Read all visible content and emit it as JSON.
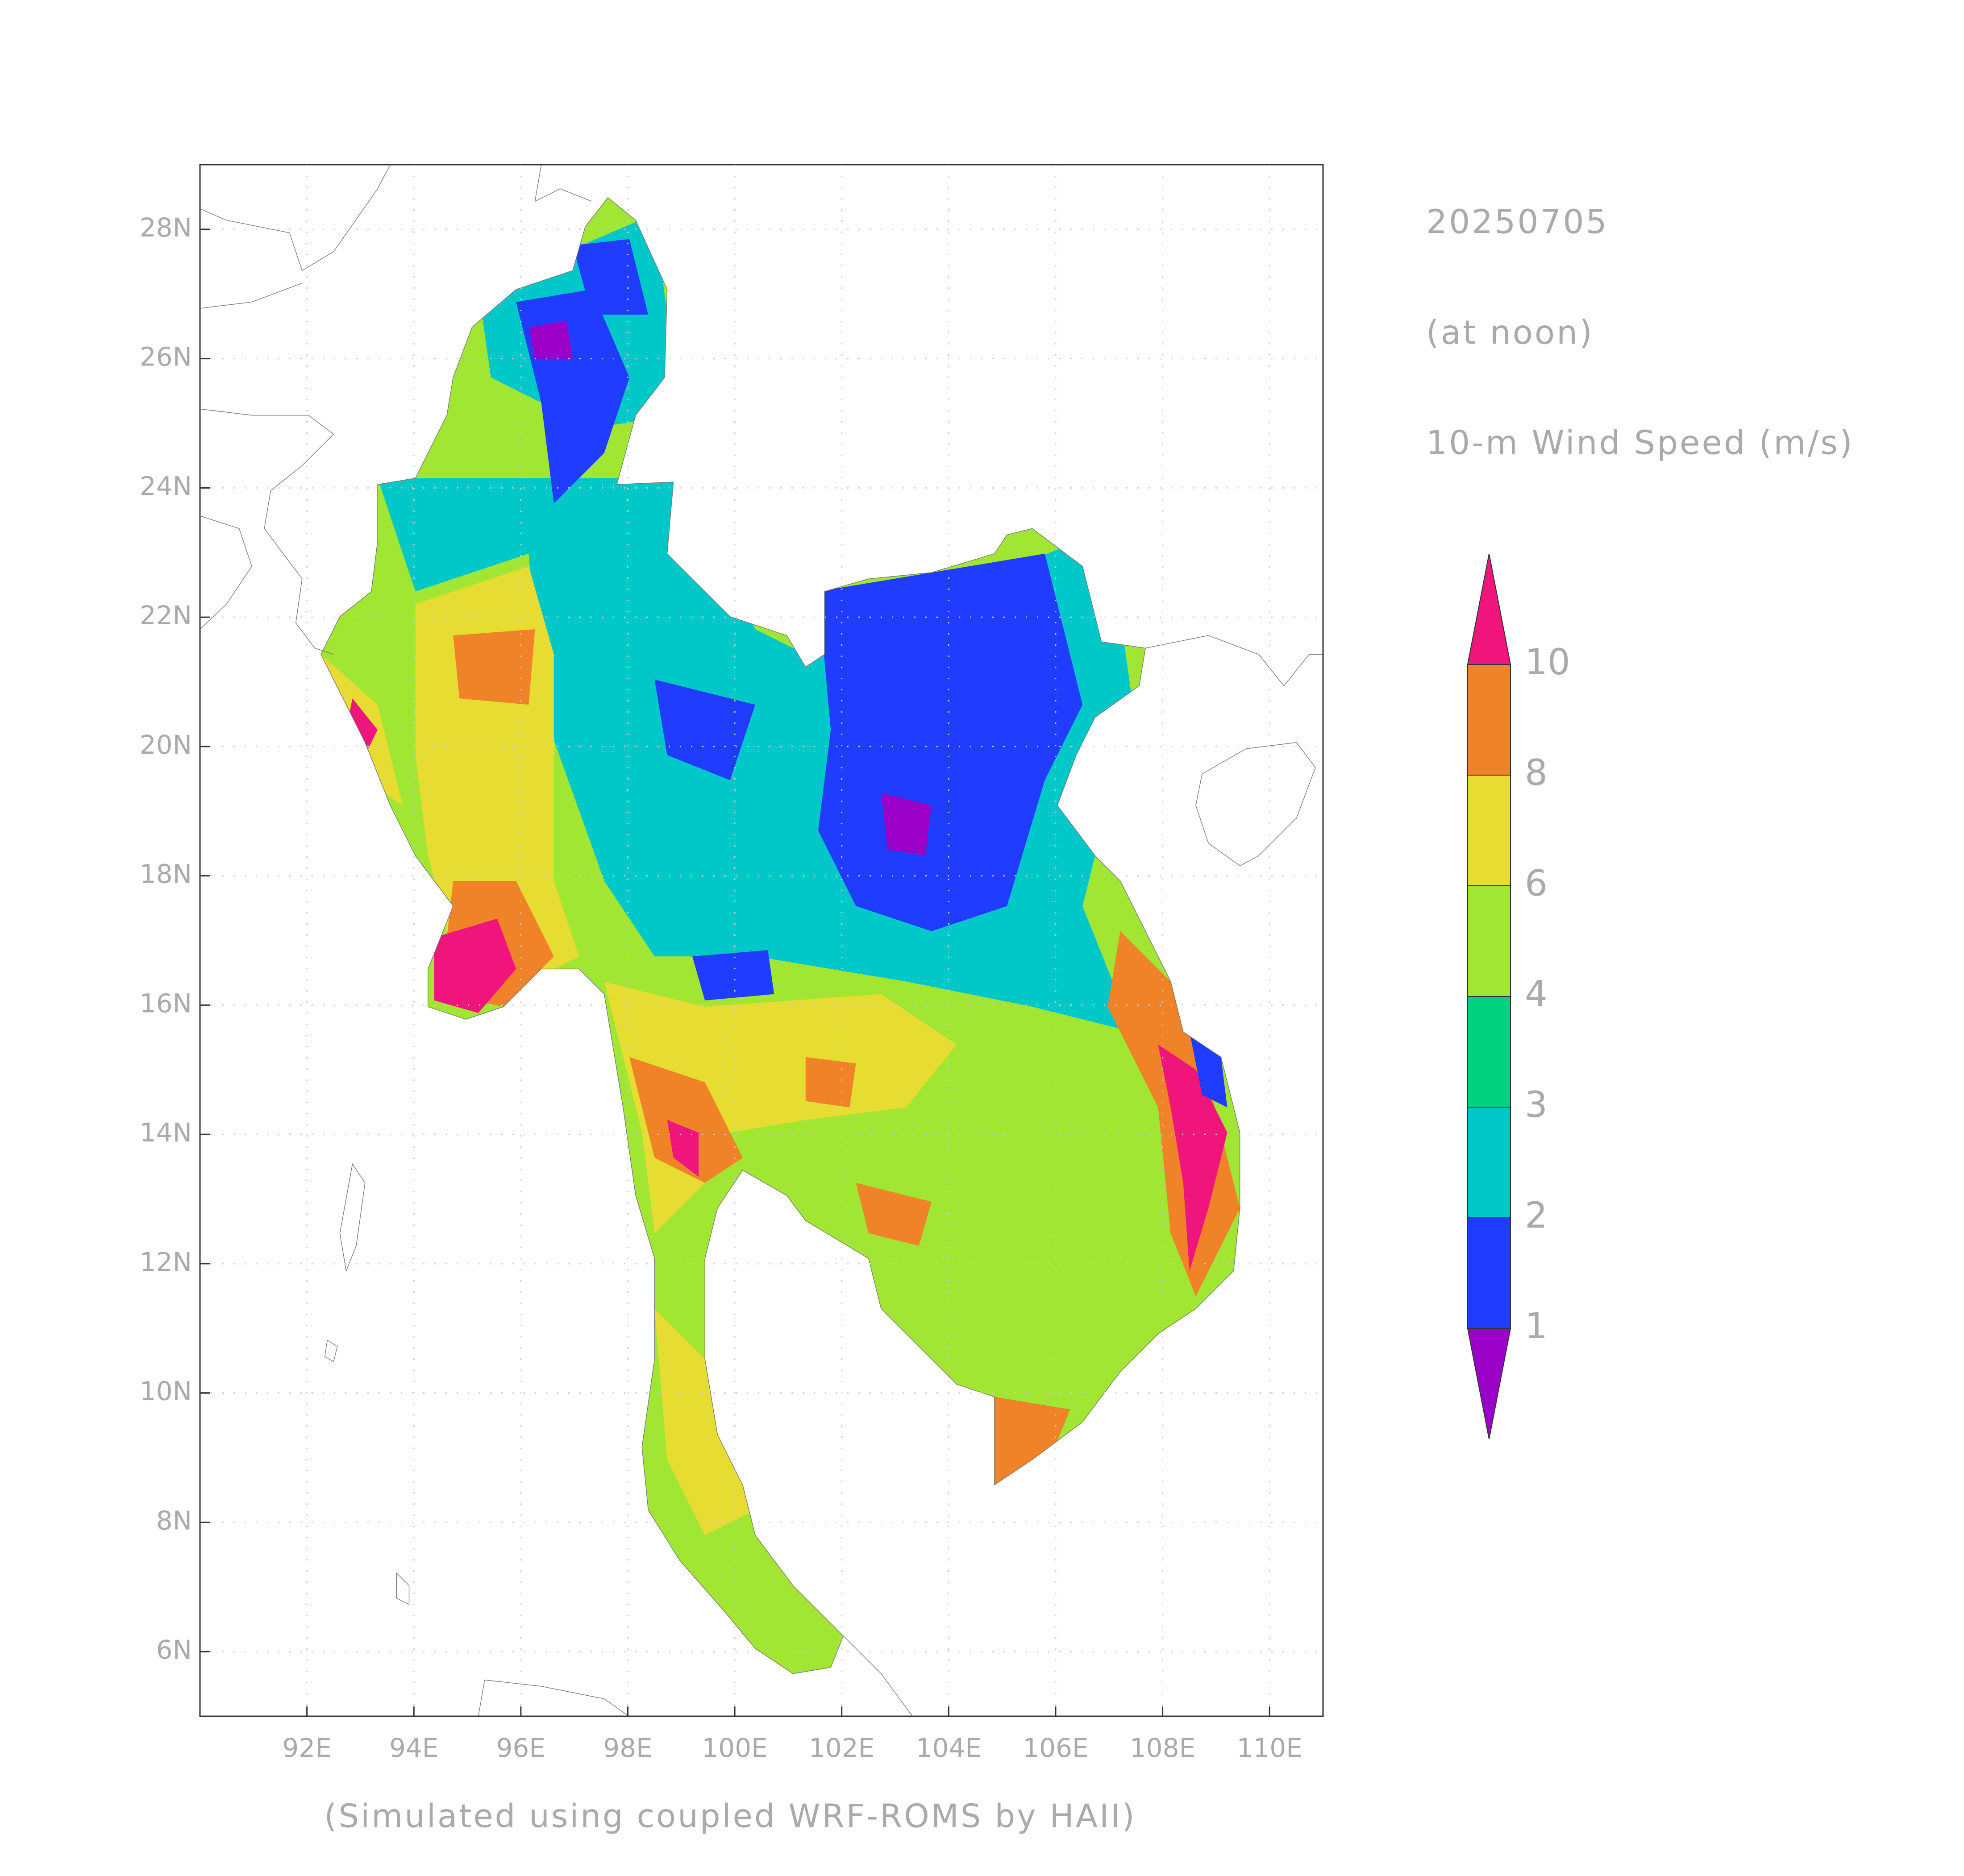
{
  "header": {
    "date": "20250705",
    "time": "(at noon)",
    "variable": "10-m Wind Speed (m/s)"
  },
  "footer": "(Simulated using coupled WRF-ROMS by HAII)",
  "map": {
    "xlim": [
      90,
      111
    ],
    "ylim": [
      5,
      29
    ],
    "xticks": [
      {
        "value": 92,
        "label": "92E"
      },
      {
        "value": 94,
        "label": "94E"
      },
      {
        "value": 96,
        "label": "96E"
      },
      {
        "value": 98,
        "label": "98E"
      },
      {
        "value": 100,
        "label": "100E"
      },
      {
        "value": 102,
        "label": "102E"
      },
      {
        "value": 104,
        "label": "104E"
      },
      {
        "value": 106,
        "label": "106E"
      },
      {
        "value": 108,
        "label": "108E"
      },
      {
        "value": 110,
        "label": "110E"
      }
    ],
    "yticks": [
      {
        "value": 6,
        "label": "6N"
      },
      {
        "value": 8,
        "label": "8N"
      },
      {
        "value": 10,
        "label": "10N"
      },
      {
        "value": 12,
        "label": "12N"
      },
      {
        "value": 14,
        "label": "14N"
      },
      {
        "value": 16,
        "label": "16N"
      },
      {
        "value": 18,
        "label": "18N"
      },
      {
        "value": 20,
        "label": "20N"
      },
      {
        "value": 22,
        "label": "22N"
      },
      {
        "value": 24,
        "label": "24N"
      },
      {
        "value": 26,
        "label": "26N"
      },
      {
        "value": 28,
        "label": "28N"
      }
    ]
  },
  "colorbar": {
    "levels": [
      1,
      2,
      3,
      4,
      6,
      8,
      10
    ],
    "colors": [
      "#9a00c8",
      "#1f3cff",
      "#00c8c8",
      "#00d282",
      "#a0e632",
      "#e6dc32",
      "#f08228",
      "#f0147d"
    ]
  }
}
